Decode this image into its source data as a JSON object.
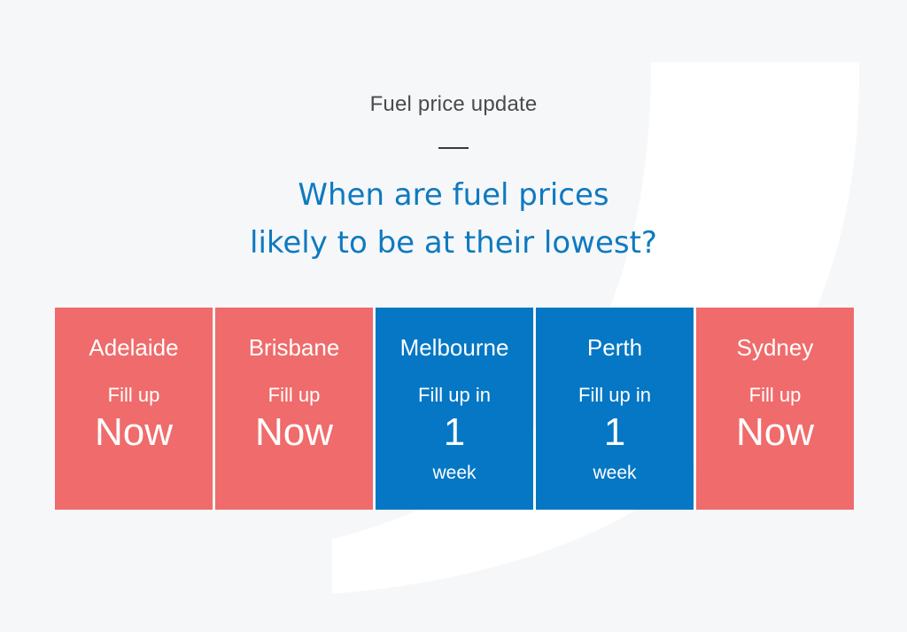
{
  "header": {
    "eyebrow": "Fuel price update",
    "headline_line1": "When are fuel prices",
    "headline_line2": "likely to be at their lowest?"
  },
  "colors": {
    "background": "#f6f7f9",
    "headline": "#0e7ac0",
    "fill_now": "#f06b6b",
    "fill_later": "#0577c4"
  },
  "cities": [
    {
      "name": "Adelaide",
      "line1": "Fill up",
      "big": "Now",
      "line3": "",
      "status": "now"
    },
    {
      "name": "Brisbane",
      "line1": "Fill up",
      "big": "Now",
      "line3": "",
      "status": "now"
    },
    {
      "name": "Melbourne",
      "line1": "Fill up in",
      "big": "1",
      "line3": "week",
      "status": "wait"
    },
    {
      "name": "Perth",
      "line1": "Fill up in",
      "big": "1",
      "line3": "week",
      "status": "wait"
    },
    {
      "name": "Sydney",
      "line1": "Fill up",
      "big": "Now",
      "line3": "",
      "status": "now"
    }
  ]
}
